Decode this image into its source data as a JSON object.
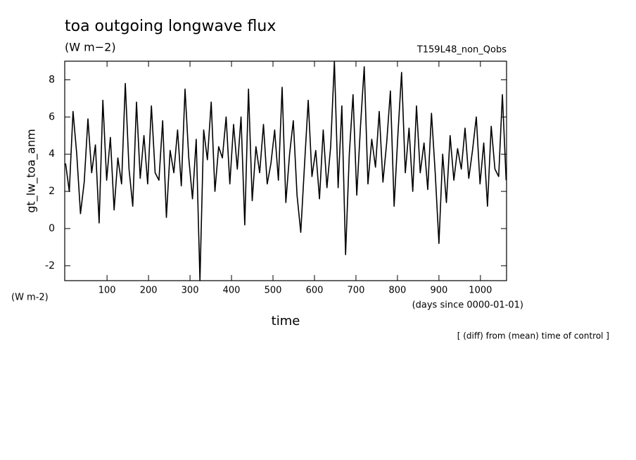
{
  "chart_data": {
    "type": "line",
    "title": "toa outgoing longwave flux",
    "units": "(W m−2)",
    "run_label": "T159L48_non_Qobs",
    "y_label": "gt_lw_toa_anm",
    "y_units": "(W m-2)",
    "x_label": "time",
    "x_units": "(days since 0000-01-01)",
    "note": "[ (diff) from (mean) time of control ]",
    "xlim": [
      -2,
      1063
    ],
    "ylim": [
      -2.8,
      9
    ],
    "xticks": [
      100,
      200,
      300,
      400,
      500,
      600,
      700,
      800,
      900,
      1000
    ],
    "yticks": [
      -2,
      0,
      2,
      4,
      6,
      8
    ],
    "color": "#000000",
    "x": [
      0,
      9,
      18,
      27,
      36,
      45,
      54,
      63,
      72,
      81,
      90,
      99,
      108,
      117,
      126,
      135,
      144,
      153,
      162,
      171,
      180,
      189,
      198,
      207,
      216,
      225,
      234,
      243,
      252,
      261,
      270,
      279,
      288,
      297,
      306,
      315,
      324,
      333,
      342,
      351,
      360,
      369,
      378,
      387,
      396,
      405,
      414,
      423,
      432,
      441,
      450,
      459,
      468,
      477,
      486,
      495,
      504,
      513,
      522,
      531,
      540,
      549,
      558,
      567,
      576,
      585,
      594,
      603,
      612,
      621,
      630,
      639,
      648,
      657,
      666,
      675,
      684,
      693,
      702,
      711,
      720,
      729,
      738,
      747,
      756,
      765,
      774,
      783,
      792,
      801,
      810,
      819,
      828,
      837,
      846,
      855,
      864,
      873,
      882,
      891,
      900,
      909,
      918,
      927,
      936,
      945,
      954,
      963,
      972,
      981,
      990,
      999,
      1008,
      1017,
      1026,
      1035,
      1044,
      1053,
      1062
    ],
    "values": [
      3.5,
      2.0,
      6.3,
      4.0,
      0.8,
      2.5,
      5.9,
      3.0,
      4.5,
      0.3,
      6.9,
      2.6,
      4.9,
      1.0,
      3.8,
      2.4,
      7.8,
      3.2,
      1.2,
      6.8,
      2.7,
      5.0,
      2.4,
      6.6,
      3.0,
      2.6,
      5.8,
      0.6,
      4.2,
      3.0,
      5.3,
      2.3,
      7.5,
      3.8,
      1.6,
      4.8,
      -2.8,
      5.3,
      3.7,
      6.8,
      2.0,
      4.4,
      3.8,
      6.0,
      2.4,
      5.6,
      3.2,
      6.0,
      0.2,
      7.5,
      1.5,
      4.4,
      3.0,
      5.6,
      2.4,
      3.5,
      5.3,
      2.6,
      7.6,
      1.4,
      4.0,
      5.8,
      1.8,
      -0.2,
      3.4,
      6.9,
      2.8,
      4.2,
      1.6,
      5.3,
      2.2,
      4.4,
      9.0,
      2.2,
      6.6,
      -1.4,
      4.0,
      7.2,
      1.8,
      5.5,
      8.7,
      2.4,
      4.8,
      3.3,
      6.3,
      2.5,
      4.6,
      7.4,
      1.2,
      5.0,
      8.4,
      3.0,
      5.4,
      2.0,
      6.6,
      3.0,
      4.6,
      2.1,
      6.2,
      3.0,
      -0.8,
      4.0,
      1.4,
      5.0,
      2.6,
      4.3,
      3.2,
      5.4,
      2.7,
      4.2,
      6.0,
      2.4,
      4.6,
      1.2,
      5.5,
      3.2,
      2.8,
      7.2,
      2.6
    ]
  }
}
